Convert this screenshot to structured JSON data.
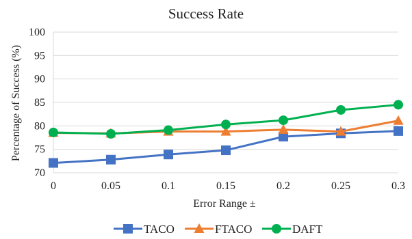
{
  "chart_data": {
    "type": "line",
    "title": "Success Rate",
    "xlabel": "Error Range ±",
    "ylabel": "Percentage of Success (%)",
    "x": [
      0,
      0.05,
      0.1,
      0.15,
      0.2,
      0.25,
      0.3
    ],
    "x_tick_labels": [
      "0",
      "0.05",
      "0.1",
      "0.15",
      "0.2",
      "0.25",
      "0.3"
    ],
    "y_ticks": [
      70,
      75,
      80,
      85,
      90,
      95,
      100
    ],
    "ylim": [
      70,
      100
    ],
    "grid": true,
    "legend_position": "bottom",
    "series": [
      {
        "name": "TACO",
        "marker": "square",
        "color": "#4472C4",
        "values": [
          72.1,
          72.8,
          73.9,
          74.8,
          77.7,
          78.4,
          78.9
        ]
      },
      {
        "name": "FTACO",
        "marker": "triangle",
        "color": "#ED7D31",
        "values": [
          78.5,
          78.4,
          78.8,
          78.8,
          79.2,
          78.8,
          81.1
        ]
      },
      {
        "name": "DAFT",
        "marker": "circle",
        "color": "#00B050",
        "values": [
          78.6,
          78.3,
          79.1,
          80.3,
          81.2,
          83.4,
          84.5
        ]
      }
    ]
  }
}
